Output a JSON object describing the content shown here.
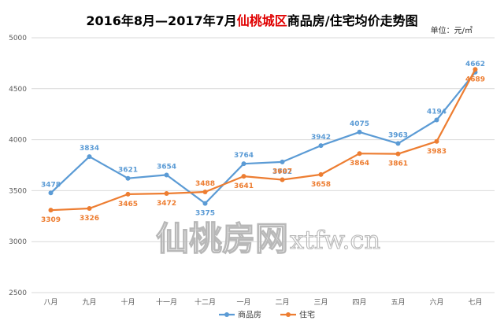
{
  "title": {
    "prefix": "2016年8月—2017年7月",
    "highlight": "仙桃城区",
    "suffix": "商品房/住宅均价走势图"
  },
  "unit": "单位：元/㎡",
  "watermark": {
    "cn": "仙桃房网",
    "en": "xtfw.cn"
  },
  "colors": {
    "series_commercial": "#5b9bd5",
    "series_residential": "#ed7d31",
    "title_highlight": "#e00000",
    "gridline": "#d9d9d9"
  },
  "chart_data": {
    "type": "line",
    "title": "2016年8月—2017年7月仙桃城区商品房/住宅均价走势图",
    "categories": [
      "八月",
      "九月",
      "十月",
      "十一月",
      "十二月",
      "一月",
      "二月",
      "三月",
      "四月",
      "五月",
      "六月",
      "七月"
    ],
    "ylim": [
      2500,
      5000
    ],
    "yticks": [
      2500,
      3000,
      3500,
      4000,
      4500,
      5000
    ],
    "ylabel": "单位：元/㎡",
    "grid": true,
    "legend_position": "bottom",
    "series": [
      {
        "name": "商品房",
        "color": "#5b9bd5",
        "values": [
          3478,
          3834,
          3621,
          3654,
          3375,
          3764,
          3782,
          3942,
          4075,
          3963,
          4194,
          4662
        ],
        "label_pos": [
          "above",
          "above",
          "above",
          "above",
          "below",
          "above",
          "below",
          "above",
          "above",
          "above",
          "above",
          "above"
        ]
      },
      {
        "name": "住宅",
        "color": "#ed7d31",
        "values": [
          3309,
          3326,
          3465,
          3472,
          3488,
          3641,
          3607,
          3658,
          3864,
          3861,
          3983,
          4689
        ],
        "label_pos": [
          "below",
          "below",
          "below",
          "below",
          "above",
          "below",
          "above",
          "below",
          "below",
          "below",
          "below",
          "below"
        ]
      }
    ]
  }
}
